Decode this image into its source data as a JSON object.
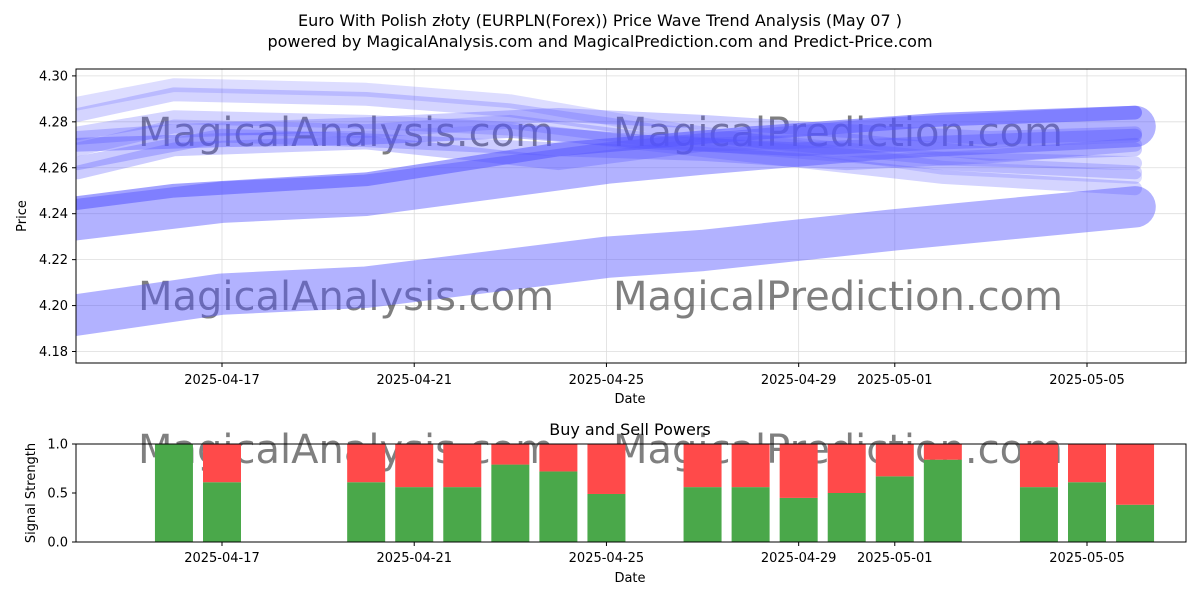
{
  "title": "Euro With Polish złoty (EURPLN(Forex)) Price Wave Trend Analysis (May 07 )",
  "subtitle": "powered by MagicalAnalysis.com and MagicalPrediction.com and Predict-Price.com",
  "watermarks": [
    "MagicalAnalysis.com",
    "MagicalPrediction.com"
  ],
  "colors": {
    "wave": "#5555ff",
    "buy": "#4aa84a",
    "sell": "#ff4a4a",
    "grid": "#dddddd"
  },
  "chart_data": [
    {
      "type": "area",
      "ylabel": "Price",
      "xlabel": "Date",
      "ylim": [
        4.175,
        4.303
      ],
      "yticks": [
        "4.18",
        "4.20",
        "4.22",
        "4.24",
        "4.26",
        "4.28",
        "4.30"
      ],
      "xtick_labels": [
        "2025-04-17",
        "2025-04-21",
        "2025-04-25",
        "2025-04-29",
        "2025-05-01",
        "2025-05-05"
      ],
      "grid": true,
      "bands": [
        {
          "name": "",
          "x": [
            "2025-04-13",
            "2025-04-17",
            "2025-04-20",
            "2025-04-25",
            "2025-04-27",
            "2025-05-01",
            "2025-05-06"
          ],
          "y": [
            4.193,
            4.205,
            4.208,
            4.221,
            4.224,
            4.233,
            4.243
          ],
          "width": 0.018,
          "opacity": 0.45
        },
        {
          "name": "",
          "x": [
            "2025-04-13",
            "2025-04-17",
            "2025-04-20",
            "2025-04-25",
            "2025-04-27",
            "2025-05-01",
            "2025-05-06"
          ],
          "y": [
            4.235,
            4.245,
            4.248,
            4.262,
            4.266,
            4.273,
            4.278
          ],
          "width": 0.018,
          "opacity": 0.45
        },
        {
          "name": "",
          "x": [
            "2025-04-13",
            "2025-04-16",
            "2025-04-20",
            "2025-04-24",
            "2025-04-28",
            "2025-05-02",
            "2025-05-06"
          ],
          "y": [
            4.242,
            4.25,
            4.255,
            4.268,
            4.275,
            4.281,
            4.284
          ],
          "width": 0.006,
          "opacity": 0.55
        },
        {
          "name": "",
          "x": [
            "2025-04-14",
            "2025-04-17",
            "2025-04-20",
            "2025-04-23",
            "2025-04-26",
            "2025-04-29",
            "2025-05-02",
            "2025-05-06"
          ],
          "y": [
            4.27,
            4.272,
            4.273,
            4.276,
            4.271,
            4.268,
            4.271,
            4.274
          ],
          "width": 0.006,
          "opacity": 0.4
        },
        {
          "name": "",
          "x": [
            "2025-04-14",
            "2025-04-16",
            "2025-04-20",
            "2025-04-23",
            "2025-04-26",
            "2025-04-29",
            "2025-05-02",
            "2025-05-06"
          ],
          "y": [
            4.283,
            4.292,
            4.29,
            4.285,
            4.276,
            4.27,
            4.264,
            4.262
          ],
          "width": 0.006,
          "opacity": 0.25
        },
        {
          "name": "",
          "x": [
            "2025-04-14",
            "2025-04-16",
            "2025-04-20",
            "2025-04-23",
            "2025-04-26",
            "2025-04-29",
            "2025-05-02",
            "2025-05-06"
          ],
          "y": [
            4.288,
            4.296,
            4.294,
            4.289,
            4.278,
            4.269,
            4.26,
            4.256
          ],
          "width": 0.006,
          "opacity": 0.2
        },
        {
          "name": "",
          "x": [
            "2025-04-14",
            "2025-04-16",
            "2025-04-20",
            "2025-04-23",
            "2025-04-26",
            "2025-04-29",
            "2025-05-02",
            "2025-05-06"
          ],
          "y": [
            4.275,
            4.282,
            4.28,
            4.277,
            4.27,
            4.263,
            4.256,
            4.251
          ],
          "width": 0.006,
          "opacity": 0.25
        },
        {
          "name": "",
          "x": [
            "2025-04-14",
            "2025-04-16",
            "2025-04-20",
            "2025-04-23",
            "2025-04-26",
            "2025-04-29",
            "2025-05-02",
            "2025-05-06"
          ],
          "y": [
            4.268,
            4.278,
            4.276,
            4.28,
            4.272,
            4.267,
            4.262,
            4.258
          ],
          "width": 0.006,
          "opacity": 0.25
        },
        {
          "name": "",
          "x": [
            "2025-04-14",
            "2025-04-17",
            "2025-04-20",
            "2025-04-24",
            "2025-04-27",
            "2025-04-30",
            "2025-05-03",
            "2025-05-06"
          ],
          "y": [
            4.262,
            4.274,
            4.272,
            4.268,
            4.266,
            4.262,
            4.265,
            4.27
          ],
          "width": 0.006,
          "opacity": 0.3
        },
        {
          "name": "",
          "x": [
            "2025-04-14",
            "2025-04-16",
            "2025-04-20",
            "2025-04-24",
            "2025-04-27",
            "2025-04-30",
            "2025-05-03",
            "2025-05-06"
          ],
          "y": [
            4.273,
            4.276,
            4.279,
            4.283,
            4.28,
            4.276,
            4.273,
            4.275
          ],
          "width": 0.006,
          "opacity": 0.3
        },
        {
          "name": "",
          "x": [
            "2025-04-14",
            "2025-04-16",
            "2025-04-20",
            "2025-04-24",
            "2025-04-27",
            "2025-04-30",
            "2025-05-03",
            "2025-05-06"
          ],
          "y": [
            4.258,
            4.268,
            4.271,
            4.262,
            4.27,
            4.272,
            4.266,
            4.268
          ],
          "width": 0.006,
          "opacity": 0.3
        }
      ]
    },
    {
      "type": "bar",
      "title": "Buy and Sell Powers",
      "ylabel": "Signal Strength",
      "xlabel": "Date",
      "ylim": [
        0,
        1.0
      ],
      "yticks": [
        "0.0",
        "0.5",
        "1.0"
      ],
      "xtick_labels": [
        "2025-04-17",
        "2025-04-21",
        "2025-04-25",
        "2025-04-29",
        "2025-05-01",
        "2025-05-05"
      ],
      "x": [
        "2025-04-16",
        "2025-04-17",
        "2025-04-20",
        "2025-04-21",
        "2025-04-22",
        "2025-04-23",
        "2025-04-24",
        "2025-04-25",
        "2025-04-27",
        "2025-04-28",
        "2025-04-29",
        "2025-04-30",
        "2025-05-01",
        "2025-05-02",
        "2025-05-04",
        "2025-05-05",
        "2025-05-06"
      ],
      "series": [
        {
          "name": "Buy",
          "values": [
            1.0,
            0.61,
            0.61,
            0.56,
            0.56,
            0.79,
            0.72,
            0.49,
            0.56,
            0.56,
            0.45,
            0.5,
            0.67,
            0.84,
            0.56,
            0.61,
            0.38
          ]
        },
        {
          "name": "Sell",
          "values": [
            0.0,
            0.39,
            0.39,
            0.44,
            0.44,
            0.21,
            0.28,
            0.51,
            0.44,
            0.44,
            0.55,
            0.5,
            0.33,
            0.16,
            0.44,
            0.39,
            0.62
          ]
        }
      ]
    }
  ]
}
